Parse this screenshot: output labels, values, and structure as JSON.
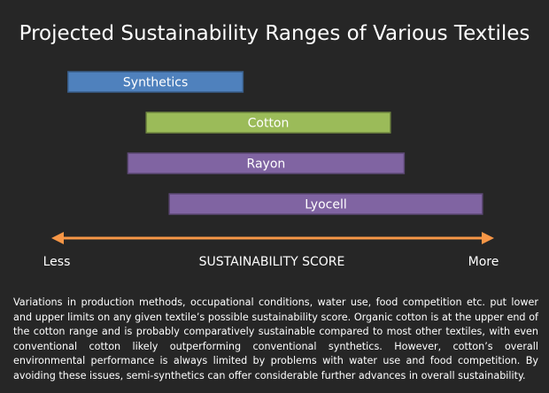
{
  "chart_data": {
    "type": "range-bar",
    "title": "Projected Sustainability Ranges of Various Textiles",
    "xlabel": "SUSTAINABILITY SCORE",
    "axis_low_label": "Less",
    "axis_high_label": "More",
    "xlim": [
      0,
      100
    ],
    "bars": [
      {
        "label": "Synthetics",
        "start": 4,
        "end": 42,
        "color": "#4f81bd"
      },
      {
        "label": "Cotton",
        "start": 21,
        "end": 74,
        "color": "#9bbb59"
      },
      {
        "label": "Rayon",
        "start": 17,
        "end": 77,
        "color": "#8064a2"
      },
      {
        "label": "Lyocell",
        "start": 26,
        "end": 94,
        "color": "#8064a2"
      }
    ],
    "axis_color": "#f79646"
  },
  "caption": "Variations in production methods, occupational conditions, water use, food competition etc. put lower and upper limits on any given textile’s possible sustainability score. Organic cotton is at the upper end of the cotton range and is probably comparatively sustainable compared to most other textiles, with even conventional cotton likely outperforming conventional synthetics. However, cotton’s overall environmental performance is always limited by problems with water use and food competition. By avoiding these issues, semi-synthetics can offer considerable further advances in overall sustainability."
}
